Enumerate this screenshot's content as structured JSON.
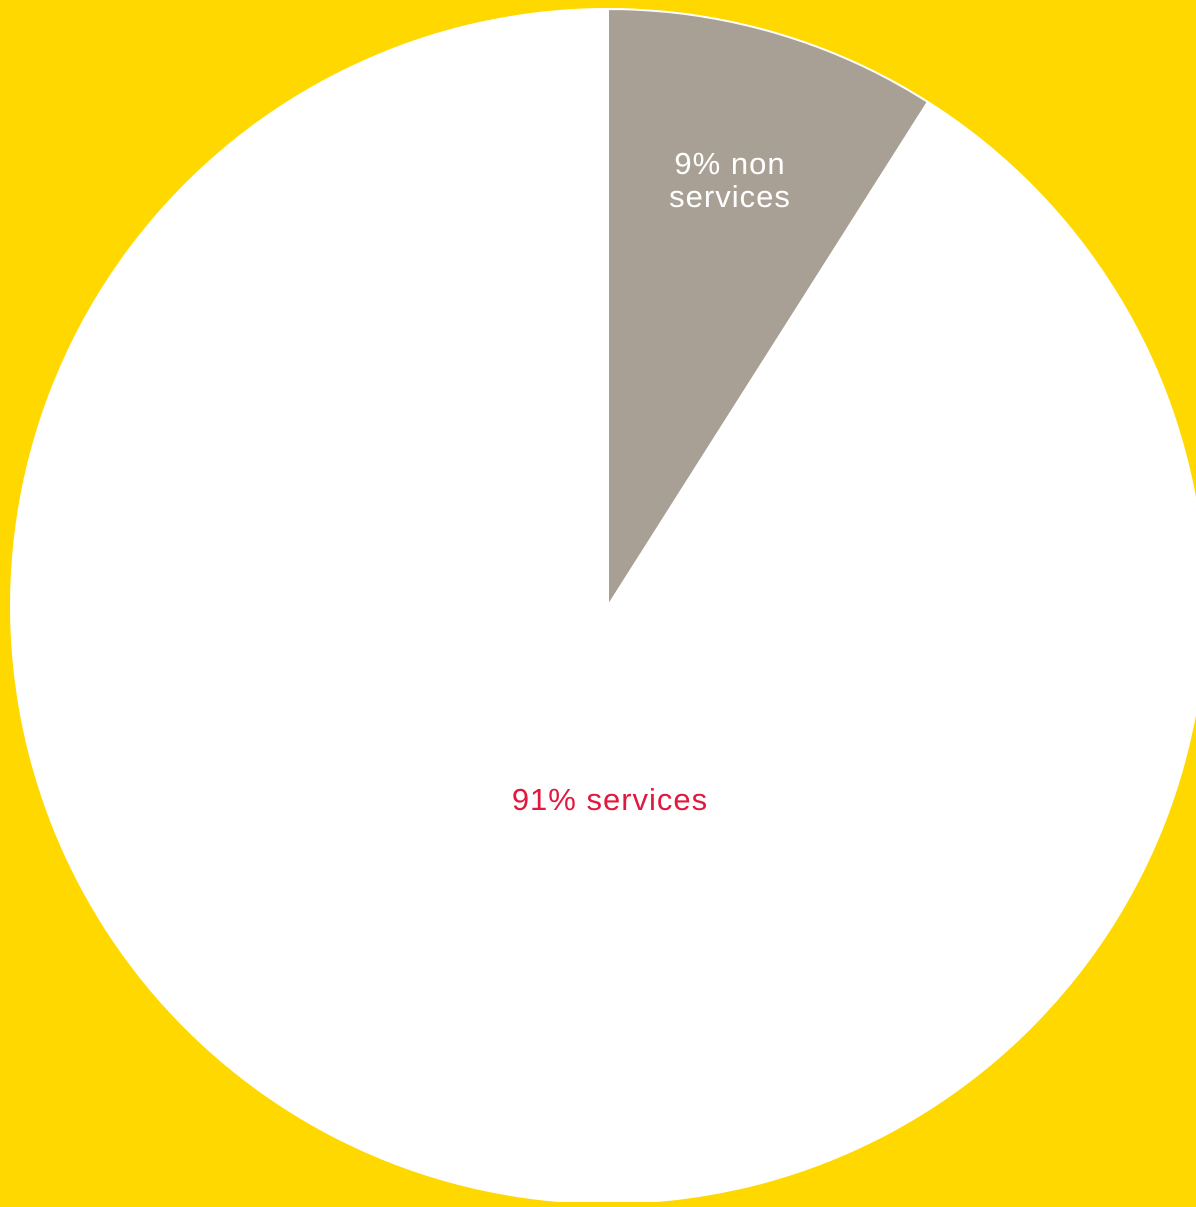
{
  "chart_data": {
    "type": "pie",
    "title": "",
    "start_angle_deg": 0,
    "direction": "clockwise",
    "slices": [
      {
        "key": "non_services",
        "value": 9,
        "label_lines": [
          "9% non",
          "services"
        ],
        "fill": "#A9A095",
        "label_color": "#FFFFFF"
      },
      {
        "key": "services",
        "value": 91,
        "label_lines": [
          "91% services"
        ],
        "fill": "#FFFFFF",
        "label_color": "#E0193F"
      }
    ]
  },
  "colors": {
    "background": "#FFD800",
    "slice_border": "#FFFFFF"
  }
}
